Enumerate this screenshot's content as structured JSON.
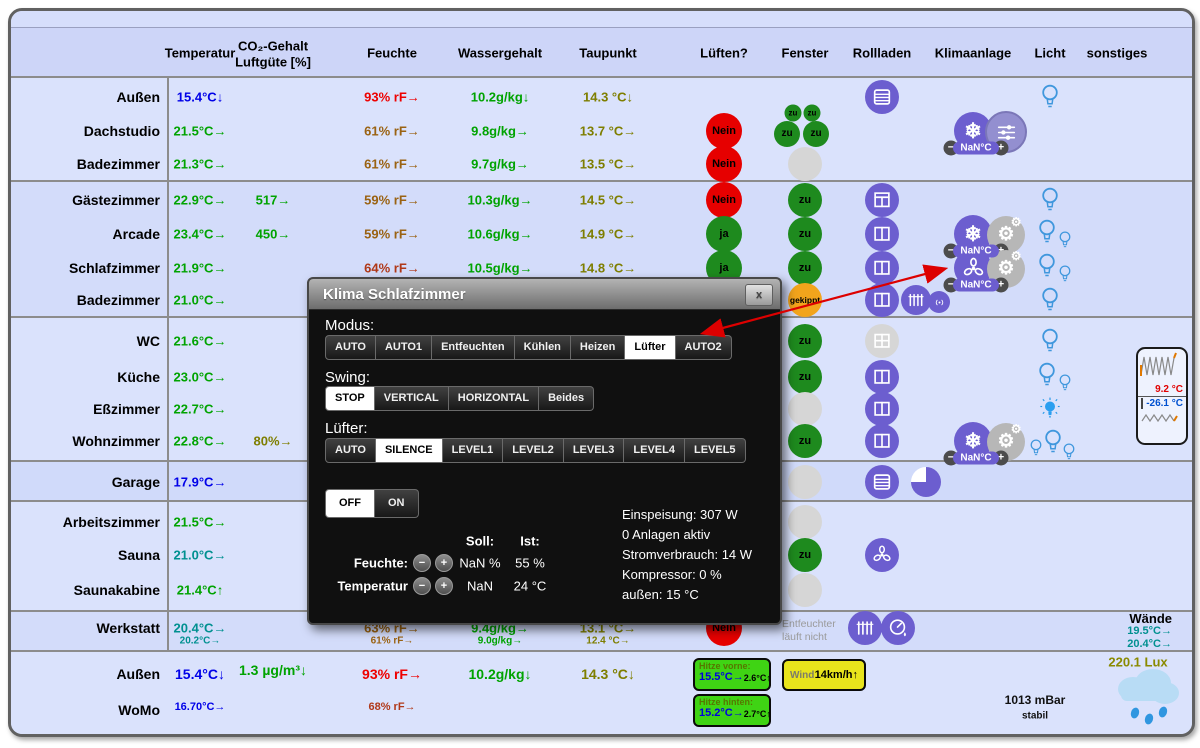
{
  "palette": {
    "green": "#00a300",
    "blue": "#0000e8",
    "red": "#ee0000",
    "brown": "#9a6212",
    "darkred": "#b03818",
    "olive": "#7e7e00",
    "teal": "#009090",
    "black": "#000000",
    "circle_red": "#e60000",
    "circle_green": "#1e8a1e",
    "circle_orange": "#f2a41c",
    "circle_gray": "#d6d6d6",
    "circle_purple": "#6c5ecf",
    "circle_gear": "#b7b7b7",
    "circle_slider": "#938fd0",
    "chip_purple": "#6c5ecf",
    "bulb_blue": "#3f97dd",
    "arrow_red": "#dd0000",
    "badge_green": "#3fd414",
    "badge_yellow": "#e8e41c"
  },
  "controls": {
    "minus": "−",
    "plus": "+"
  },
  "header": {
    "columns": [
      {
        "label": "Temperatur"
      },
      {
        "label": "CO₂-Gehalt",
        "label2": "Luftgüte [%]"
      },
      {
        "label": "Feuchte"
      },
      {
        "label": "Wassergehalt"
      },
      {
        "label": "Taupunkt"
      },
      {
        "label": "Lüften?"
      },
      {
        "label": "Fenster"
      },
      {
        "label": "Rollladen"
      },
      {
        "label": "Klimaanlage"
      },
      {
        "label": "Licht"
      },
      {
        "label": "sonstiges"
      }
    ]
  },
  "rooms": [
    {
      "id": "aussen-og",
      "label": "Außen",
      "temp": {
        "t": "15.4°C↓",
        "c": "blue"
      },
      "hum": {
        "t": "93% rF→",
        "c": "red"
      },
      "water": {
        "t": "10.2g/kg↓",
        "c": "green"
      },
      "dew": {
        "t": "14.3 °C↓",
        "c": "olive"
      },
      "shutter": [
        "slats-icon"
      ],
      "lights": [
        {
          "size": "big"
        }
      ]
    },
    {
      "id": "dachstudio",
      "label": "Dachstudio",
      "temp": {
        "t": "21.5°C→",
        "c": "green"
      },
      "hum": {
        "t": "61% rF→",
        "c": "brown"
      },
      "water": {
        "t": "9.8g/kg→",
        "c": "green"
      },
      "dew": {
        "t": "13.7 °C→",
        "c": "olive"
      },
      "vent": {
        "t": "Nein",
        "s": "no"
      },
      "window_cluster": {
        "small": [
          "zu",
          "zu"
        ],
        "big": [
          "zu",
          "zu"
        ]
      },
      "climate": {
        "circles": [
          "snowflake-icon",
          "sliders-icon"
        ],
        "setpoint": "NaN°C"
      }
    },
    {
      "id": "badezimmer-og",
      "label": "Badezimmer",
      "temp": {
        "t": "21.3°C→",
        "c": "green"
      },
      "hum": {
        "t": "61% rF→",
        "c": "brown"
      },
      "water": {
        "t": "9.7g/kg→",
        "c": "green"
      },
      "dew": {
        "t": "13.5 °C→",
        "c": "olive"
      },
      "vent": {
        "t": "Nein",
        "s": "no"
      },
      "window": {
        "s": "unknown"
      }
    },
    {
      "id": "gaestezimmer",
      "label": "Gästezimmer",
      "temp": {
        "t": "22.9°C→",
        "c": "green"
      },
      "co2": {
        "t": "517→",
        "c": "green"
      },
      "hum": {
        "t": "59% rF→",
        "c": "brown"
      },
      "water": {
        "t": "10.3g/kg→",
        "c": "green"
      },
      "dew": {
        "t": "14.5 °C→",
        "c": "olive"
      },
      "vent": {
        "t": "Nein",
        "s": "no"
      },
      "window": {
        "t": "zu",
        "s": "closed"
      },
      "shutter": [
        "windowT-icon"
      ],
      "lights": [
        {
          "size": "big"
        }
      ]
    },
    {
      "id": "arcade",
      "label": "Arcade",
      "temp": {
        "t": "23.4°C→",
        "c": "green"
      },
      "co2": {
        "t": "450→",
        "c": "green"
      },
      "hum": {
        "t": "59% rF→",
        "c": "brown"
      },
      "water": {
        "t": "10.6g/kg→",
        "c": "green"
      },
      "dew": {
        "t": "14.9 °C→",
        "c": "olive"
      },
      "vent": {
        "t": "ja",
        "s": "yes"
      },
      "window": {
        "t": "zu",
        "s": "closed"
      },
      "shutter": [
        "window2-icon"
      ],
      "climate": {
        "circles": [
          "snowflake-icon",
          "gears-icon"
        ],
        "setpoint": "NaN°C"
      },
      "lights": [
        {
          "size": "big"
        },
        {
          "size": "small"
        }
      ]
    },
    {
      "id": "schlafzimmer",
      "label": "Schlafzimmer",
      "temp": {
        "t": "21.9°C→",
        "c": "green"
      },
      "hum": {
        "t": "64% rF→",
        "c": "darkred"
      },
      "water": {
        "t": "10.5g/kg→",
        "c": "green"
      },
      "dew": {
        "t": "14.8 °C→",
        "c": "olive"
      },
      "vent": {
        "t": "ja",
        "s": "yes"
      },
      "window": {
        "t": "zu",
        "s": "closed"
      },
      "shutter": [
        "window2-icon"
      ],
      "climate": {
        "circles": [
          "fan-icon",
          "gears-icon"
        ],
        "setpoint": "NaN°C"
      },
      "lights": [
        {
          "size": "big"
        },
        {
          "size": "small"
        }
      ]
    },
    {
      "id": "badezimmer-ug",
      "label": "Badezimmer",
      "temp": {
        "t": "21.0°C→",
        "c": "green"
      },
      "window": {
        "t": "gekippt",
        "s": "tilted"
      },
      "shutter": [
        "window2-icon"
      ],
      "devices": [
        "radiator-icon",
        "sound-icon"
      ],
      "lights": [
        {
          "size": "big"
        }
      ]
    },
    {
      "id": "wc",
      "label": "WC",
      "temp": {
        "t": "21.6°C→",
        "c": "green"
      },
      "window": {
        "t": "zu",
        "s": "closed"
      },
      "shutter": [
        "window4-icon"
      ],
      "shutter_state": "gray",
      "lights": [
        {
          "size": "big"
        }
      ]
    },
    {
      "id": "kueche",
      "label": "Küche",
      "temp": {
        "t": "23.0°C→",
        "c": "green"
      },
      "window": {
        "t": "zu",
        "s": "closed"
      },
      "shutter": [
        "window2-icon"
      ],
      "lights": [
        {
          "size": "big"
        },
        {
          "size": "small"
        }
      ]
    },
    {
      "id": "esszimmer",
      "label": "Eßzimmer",
      "temp": {
        "t": "22.7°C→",
        "c": "green"
      },
      "window": {
        "s": "unknown"
      },
      "shutter": [
        "window2-icon"
      ],
      "lights": [
        {
          "size": "big",
          "on": true
        }
      ]
    },
    {
      "id": "wohnzimmer",
      "label": "Wohnzimmer",
      "temp": {
        "t": "22.8°C→",
        "c": "green"
      },
      "co2": {
        "t": "80%→",
        "c": "olive"
      },
      "window": {
        "t": "zu",
        "s": "closed"
      },
      "shutter": [
        "window2-icon"
      ],
      "climate": {
        "circles": [
          "snowflake-icon",
          "gears-icon"
        ],
        "setpoint": "NaN°C"
      },
      "lights": [
        {
          "size": "small"
        },
        {
          "size": "big"
        },
        {
          "size": "small"
        }
      ]
    },
    {
      "id": "garage",
      "label": "Garage",
      "temp": {
        "t": "17.9°C→",
        "c": "blue"
      },
      "window": {
        "s": "unknown"
      },
      "shutter": [
        "slats-icon",
        "pie-icon"
      ]
    },
    {
      "id": "arbeitszimmer",
      "label": "Arbeitszimmer",
      "temp": {
        "t": "21.5°C→",
        "c": "green"
      },
      "window": {
        "s": "unknown"
      }
    },
    {
      "id": "sauna",
      "label": "Sauna",
      "temp": {
        "t": "21.0°C→",
        "c": "teal"
      },
      "window": {
        "t": "zu",
        "s": "closed"
      },
      "shutter": [
        "fan-icon"
      ]
    },
    {
      "id": "saunakabine",
      "label": "Saunakabine",
      "temp": {
        "t": "21.4°C↑",
        "c": "green"
      },
      "window": {
        "s": "unknown"
      }
    },
    {
      "id": "werkstatt",
      "label": "Werkstatt",
      "temp": {
        "t": "20.4°C→",
        "c": "teal",
        "sub": "20.2°C→"
      },
      "hum": {
        "t": "63% rF→",
        "c": "brown",
        "sub": "61% rF→"
      },
      "water": {
        "t": "9.4g/kg→",
        "c": "green",
        "sub": "9.0g/kg→"
      },
      "dew": {
        "t": "13.1 °C→",
        "c": "olive",
        "sub": "12.4 °C→"
      },
      "vent": {
        "t": "Nein",
        "s": "no"
      },
      "devices": [
        "radiator-icon",
        "gauge-icon"
      ]
    },
    {
      "id": "aussen-ug",
      "label": "Außen",
      "temp": {
        "t": "15.4°C↓",
        "c": "blue"
      },
      "co2": {
        "t": "1.3 µg/m³↓",
        "c": "green"
      },
      "hum": {
        "t": "93% rF→",
        "c": "red"
      },
      "water": {
        "t": "10.2g/kg↓",
        "c": "green"
      },
      "dew": {
        "t": "14.3 °C↓",
        "c": "olive"
      }
    },
    {
      "id": "womo",
      "label": "WoMo",
      "temp": {
        "t": "16.70°C→",
        "c": "blue",
        "small": true
      },
      "hum": {
        "t": "68% rF→",
        "c": "darkred",
        "small": true
      }
    }
  ],
  "dialog": {
    "title": "Klima Schlafzimmer",
    "close_glyph": "x",
    "modus": {
      "label": "Modus:",
      "options": [
        "AUTO",
        "AUTO1",
        "Entfeuchten",
        "Kühlen",
        "Heizen",
        "Lüfter",
        "AUTO2"
      ],
      "active": "Lüfter"
    },
    "swing": {
      "label": "Swing:",
      "options": [
        "STOP",
        "VERTICAL",
        "HORIZONTAL",
        "Beides"
      ],
      "active": "STOP"
    },
    "fan": {
      "label": "Lüfter:",
      "options": [
        "AUTO",
        "SILENCE",
        "LEVEL1",
        "LEVEL2",
        "LEVEL3",
        "LEVEL4",
        "LEVEL5"
      ],
      "active": "SILENCE"
    },
    "power": {
      "options": [
        "OFF",
        "ON"
      ],
      "active": "OFF"
    },
    "setpoints": {
      "soll": "Soll:",
      "ist": "Ist:",
      "rows": [
        {
          "label": "Feuchte:",
          "soll": "NaN %",
          "ist": "55 %"
        },
        {
          "label": "Temperatur",
          "soll": "NaN",
          "ist": "24 °C"
        }
      ]
    },
    "stats": [
      "Einspeisung: 307 W",
      "0 Anlagen aktiv",
      "Stromverbrauch: 14 W",
      "Kompressor: 0 %",
      "außen: 15 °C"
    ]
  },
  "widgets": {
    "fridge": {
      "temp1": "9.2 °C",
      "temp2": "-26.1 °C"
    },
    "walls": {
      "label": "Wände",
      "t1": "19.5°C→",
      "t2": "20.4°C→"
    },
    "lux": "220.1 Lux",
    "pressure": {
      "value": "1013 mBar",
      "trend": "stabil"
    },
    "wind": {
      "label": "Wind",
      "value": "14km/h↑"
    },
    "heat_front": {
      "label": "Hitze vorne:",
      "temp": "15.5°C→",
      "delta": "2.6°C↑"
    },
    "heat_back": {
      "label": "Hitze hinten:",
      "temp": "15.2°C→",
      "delta": "2.7°C↑"
    },
    "dehumidifier_note": "Entfeuchter läuft nicht"
  }
}
